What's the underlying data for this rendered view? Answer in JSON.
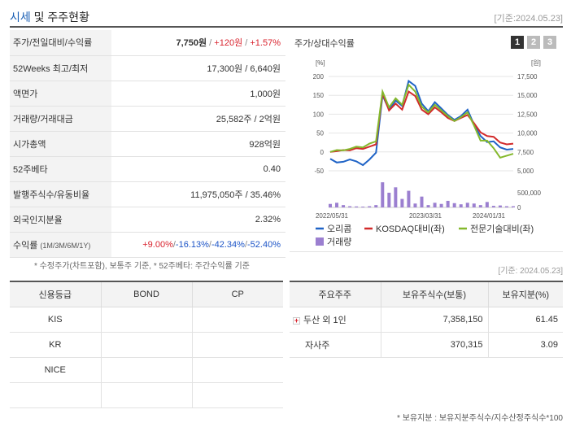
{
  "header": {
    "title_main": "시세",
    "title_rest": "및 주주현황",
    "date": "[기준:2024.05.23]"
  },
  "summary": {
    "rows": [
      {
        "label": "주가/전일대비/수익률",
        "parts": [
          {
            "text": "7,750원",
            "style": "bold"
          },
          {
            "text": " / ",
            "style": "sep"
          },
          {
            "text": "+120원",
            "style": "red"
          },
          {
            "text": " / ",
            "style": "sep"
          },
          {
            "text": "+1.57%",
            "style": "red"
          }
        ]
      },
      {
        "label": "52Weeks 최고/최저",
        "parts": [
          {
            "text": "17,300원 / 6,640원",
            "style": ""
          }
        ]
      },
      {
        "label": "액면가",
        "parts": [
          {
            "text": "1,000원",
            "style": ""
          }
        ]
      },
      {
        "label": "거래량/거래대금",
        "parts": [
          {
            "text": "25,582주 / 2억원",
            "style": ""
          }
        ]
      },
      {
        "label": "시가총액",
        "parts": [
          {
            "text": "928억원",
            "style": ""
          }
        ]
      },
      {
        "label": "52주베타",
        "parts": [
          {
            "text": "0.40",
            "style": ""
          }
        ]
      },
      {
        "label": "발행주식수/유동비율",
        "parts": [
          {
            "text": "11,975,050주 / 35.46%",
            "style": ""
          }
        ]
      },
      {
        "label": "외국인지분율",
        "parts": [
          {
            "text": "2.32%",
            "style": ""
          }
        ]
      }
    ],
    "return_row": {
      "label": "수익률",
      "label_sub": "(1M/3M/6M/1Y)",
      "parts": [
        {
          "text": "+9.00%",
          "style": "red"
        },
        {
          "text": "/",
          "style": "sep"
        },
        {
          "text": "-16.13%",
          "style": "blu"
        },
        {
          "text": "/",
          "style": "sep"
        },
        {
          "text": "-42.34%",
          "style": "blu"
        },
        {
          "text": "/",
          "style": "sep"
        },
        {
          "text": "-52.40%",
          "style": "blu"
        }
      ]
    }
  },
  "chart_panel": {
    "title": "주가/상대수익률",
    "buttons": [
      "1",
      "2",
      "3"
    ],
    "active": 0
  },
  "chart_data": {
    "type": "line",
    "left_unit": "[%]",
    "right_unit": "[원]",
    "left_ticks": [
      "200",
      "150",
      "100",
      "50",
      "0",
      "-50"
    ],
    "right_ticks": [
      "17,500",
      "15,000",
      "12,500",
      "10,000",
      "7,500",
      "5,000"
    ],
    "volume_ticks": [
      "500,000",
      "0"
    ],
    "x_labels": [
      "2022/05/31",
      "2023/03/31",
      "2024/01/31"
    ],
    "ylim_left": [
      -50,
      200
    ],
    "series": [
      {
        "name": "오리콤",
        "color": "#1f63c6",
        "values": [
          -18,
          -28,
          -26,
          -20,
          -25,
          -35,
          -20,
          -2,
          150,
          112,
          136,
          122,
          188,
          175,
          128,
          108,
          132,
          115,
          98,
          85,
          95,
          112,
          72,
          42,
          26,
          28,
          12,
          6,
          8
        ]
      },
      {
        "name": "KOSDAQ대비(좌)",
        "color": "#d22b2b",
        "values": [
          0,
          2,
          5,
          4,
          10,
          8,
          14,
          20,
          155,
          110,
          128,
          112,
          160,
          148,
          112,
          100,
          118,
          105,
          90,
          82,
          90,
          98,
          76,
          52,
          42,
          40,
          25,
          20,
          22
        ]
      },
      {
        "name": "전문기술대비(좌)",
        "color": "#84b82c",
        "values": [
          0,
          5,
          4,
          8,
          14,
          12,
          22,
          28,
          160,
          118,
          142,
          125,
          178,
          160,
          120,
          105,
          125,
          110,
          95,
          82,
          92,
          105,
          70,
          30,
          30,
          10,
          -15,
          -10,
          -5
        ]
      }
    ],
    "volume": {
      "name": "거래량",
      "color": "#9b7fd0",
      "values": [
        90000,
        120000,
        60000,
        30000,
        25000,
        20000,
        30000,
        60000,
        650000,
        380000,
        520000,
        220000,
        430000,
        100000,
        280000,
        60000,
        120000,
        90000,
        170000,
        110000,
        80000,
        120000,
        100000,
        60000,
        140000,
        40000,
        50000,
        30000,
        30000
      ]
    },
    "volume_max": 800000
  },
  "notes": {
    "left": "* 수정주가(차트포함), 보통주 기준, * 52주베타: 주간수익률 기준",
    "date": "[기준: 2024.05.23]",
    "bottom": "* 보유지분 : 보유지분주식수/지수산정주식수*100"
  },
  "credit": {
    "headers": [
      "신용등급",
      "BOND",
      "CP"
    ],
    "rows": [
      [
        "KIS",
        "",
        ""
      ],
      [
        "KR",
        "",
        ""
      ],
      [
        "NICE",
        "",
        ""
      ],
      [
        "",
        "",
        ""
      ]
    ]
  },
  "holders": {
    "headers": [
      "주요주주",
      "보유주식수(보통)",
      "보유지분(%)"
    ],
    "rows": [
      {
        "name": "두산 외 1인",
        "shares": "7,358,150",
        "pct": "61.45",
        "expand": true
      },
      {
        "name": "자사주",
        "shares": "370,315",
        "pct": "3.09",
        "expand": false
      }
    ]
  }
}
